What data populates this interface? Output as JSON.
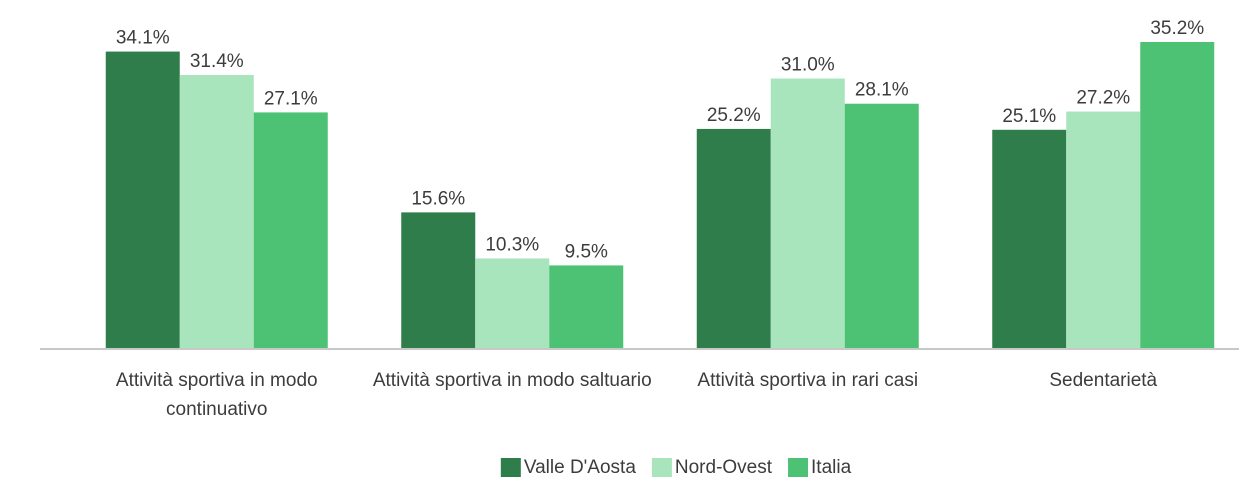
{
  "chart_data": {
    "type": "bar",
    "categories": [
      "Attività sportiva in modo continuativo",
      "Attività sportiva in modo saltuario",
      "Attività sportiva in rari casi",
      "Sedentarietà"
    ],
    "series": [
      {
        "name": "Valle D'Aosta",
        "color": "#2e7d4a",
        "values": [
          34.1,
          15.6,
          25.2,
          25.1
        ],
        "value_labels": [
          "34.1%",
          "15.6%",
          "25.2%",
          "25.1%"
        ]
      },
      {
        "name": "Nord-Ovest",
        "color": "#a8e4bc",
        "values": [
          31.4,
          10.3,
          31.0,
          27.2
        ],
        "value_labels": [
          "31.4%",
          "10.3%",
          "31.0%",
          "27.2%"
        ]
      },
      {
        "name": "Italia",
        "color": "#4ec274",
        "values": [
          27.1,
          9.5,
          28.1,
          35.2
        ],
        "value_labels": [
          "27.1%",
          "9.5%",
          "28.1%",
          "35.2%"
        ]
      }
    ],
    "legend": "bottom"
  }
}
